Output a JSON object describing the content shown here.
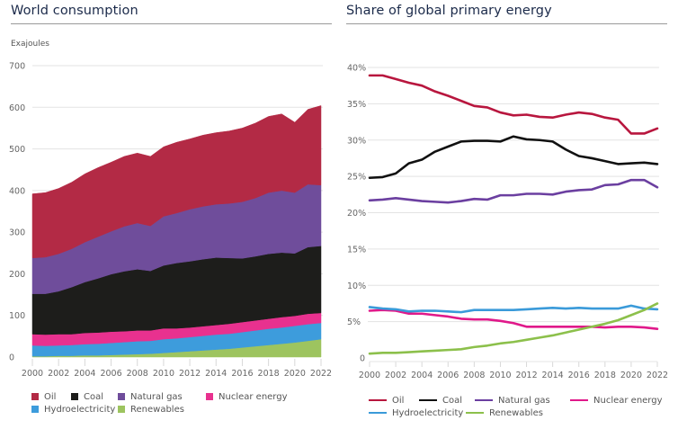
{
  "chart_data": [
    {
      "type": "area",
      "stacked": true,
      "title": "World consumption",
      "ylabel": "Exajoules",
      "xlabel": "",
      "x": [
        2000,
        2001,
        2002,
        2003,
        2004,
        2005,
        2006,
        2007,
        2008,
        2009,
        2010,
        2011,
        2012,
        2013,
        2014,
        2015,
        2016,
        2017,
        2018,
        2019,
        2020,
        2021,
        2022
      ],
      "xticks": [
        "2000",
        "2002",
        "2004",
        "2006",
        "2008",
        "2010",
        "2012",
        "2014",
        "2016",
        "2018",
        "2020",
        "2022"
      ],
      "ylim": [
        0,
        700
      ],
      "yticks": [
        "0",
        "100",
        "200",
        "300",
        "400",
        "500",
        "600",
        "700"
      ],
      "grid": true,
      "legend_position": "bottom",
      "series": [
        {
          "name": "Renewables",
          "color": "#9dc45f",
          "values": [
            2,
            2,
            3,
            3,
            4,
            4,
            5,
            6,
            7,
            8,
            10,
            12,
            14,
            16,
            18,
            20,
            23,
            26,
            29,
            32,
            35,
            39,
            43
          ]
        },
        {
          "name": "Hydroelectricity",
          "color": "#3d9cdc",
          "values": [
            26,
            25,
            25,
            26,
            27,
            28,
            29,
            30,
            31,
            31,
            33,
            33,
            34,
            35,
            36,
            36,
            37,
            38,
            39,
            39,
            40,
            40,
            39
          ]
        },
        {
          "name": "Nuclear energy",
          "color": "#e8318f",
          "values": [
            27,
            27,
            27,
            26,
            27,
            27,
            27,
            26,
            26,
            25,
            26,
            24,
            23,
            23,
            23,
            24,
            24,
            24,
            24,
            25,
            24,
            25,
            24
          ]
        },
        {
          "name": "Coal",
          "color": "#1d1d1b",
          "values": [
            97,
            98,
            103,
            113,
            122,
            130,
            138,
            144,
            147,
            143,
            151,
            157,
            159,
            161,
            162,
            158,
            153,
            154,
            156,
            155,
            150,
            160,
            161
          ]
        },
        {
          "name": "Natural gas",
          "color": "#6f4d9b",
          "values": [
            86,
            88,
            90,
            92,
            96,
            100,
            103,
            108,
            111,
            108,
            118,
            120,
            125,
            127,
            128,
            131,
            136,
            140,
            147,
            149,
            146,
            151,
            146
          ]
        },
        {
          "name": "Oil",
          "color": "#b32a45",
          "values": [
            154,
            155,
            157,
            160,
            164,
            166,
            166,
            168,
            168,
            167,
            167,
            170,
            169,
            171,
            172,
            174,
            177,
            180,
            183,
            184,
            169,
            180,
            191
          ]
        }
      ],
      "legend": [
        "Oil",
        "Coal",
        "Natural gas",
        "Nuclear energy",
        "Hydroelectricity",
        "Renewables"
      ]
    },
    {
      "type": "line",
      "title": "Share of global primary energy",
      "xlabel": "",
      "ylabel": "",
      "x": [
        2000,
        2001,
        2002,
        2003,
        2004,
        2005,
        2006,
        2007,
        2008,
        2009,
        2010,
        2011,
        2012,
        2013,
        2014,
        2015,
        2016,
        2017,
        2018,
        2019,
        2020,
        2021,
        2022
      ],
      "xticks": [
        "2000",
        "2002",
        "2004",
        "2006",
        "2008",
        "2010",
        "2012",
        "2014",
        "2016",
        "2018",
        "2020",
        "2022"
      ],
      "ylim": [
        0,
        40
      ],
      "yticks": [
        "0",
        "5%",
        "10%",
        "15%",
        "20%",
        "25%",
        "30%",
        "35%",
        "40%"
      ],
      "grid": true,
      "legend_position": "bottom",
      "series": [
        {
          "name": "Oil",
          "color": "#b8163e",
          "values": [
            38.9,
            38.9,
            38.4,
            37.9,
            37.5,
            36.7,
            36.1,
            35.4,
            34.7,
            34.5,
            33.8,
            33.4,
            33.5,
            33.2,
            33.1,
            33.5,
            33.8,
            33.6,
            33.1,
            32.8,
            30.9,
            30.9,
            31.6
          ]
        },
        {
          "name": "Coal",
          "color": "#111111",
          "values": [
            24.8,
            24.9,
            25.4,
            26.8,
            27.3,
            28.4,
            29.1,
            29.8,
            29.9,
            29.9,
            29.8,
            30.5,
            30.1,
            30.0,
            29.8,
            28.7,
            27.8,
            27.5,
            27.1,
            26.7,
            26.8,
            26.9,
            26.7
          ]
        },
        {
          "name": "Natural gas",
          "color": "#6b3fa0",
          "values": [
            21.7,
            21.8,
            22.0,
            21.8,
            21.6,
            21.5,
            21.4,
            21.6,
            21.9,
            21.8,
            22.4,
            22.4,
            22.6,
            22.6,
            22.5,
            22.9,
            23.1,
            23.2,
            23.8,
            23.9,
            24.5,
            24.5,
            23.5
          ]
        },
        {
          "name": "Nuclear energy",
          "color": "#e0198a",
          "values": [
            6.5,
            6.6,
            6.5,
            6.1,
            6.1,
            5.9,
            5.7,
            5.4,
            5.3,
            5.3,
            5.1,
            4.8,
            4.3,
            4.3,
            4.3,
            4.3,
            4.3,
            4.3,
            4.2,
            4.3,
            4.3,
            4.2,
            4.0
          ]
        },
        {
          "name": "Hydroelectricity",
          "color": "#3a9ad9",
          "values": [
            7.0,
            6.8,
            6.7,
            6.4,
            6.5,
            6.5,
            6.4,
            6.3,
            6.6,
            6.6,
            6.6,
            6.6,
            6.7,
            6.8,
            6.9,
            6.8,
            6.9,
            6.8,
            6.8,
            6.8,
            7.2,
            6.8,
            6.7
          ]
        },
        {
          "name": "Renewables",
          "color": "#8cc04b",
          "values": [
            0.6,
            0.7,
            0.7,
            0.8,
            0.9,
            1.0,
            1.1,
            1.2,
            1.5,
            1.7,
            2.0,
            2.2,
            2.5,
            2.8,
            3.1,
            3.5,
            3.9,
            4.3,
            4.7,
            5.2,
            5.9,
            6.6,
            7.5
          ]
        }
      ],
      "legend": [
        "Oil",
        "Coal",
        "Natural gas",
        "Nuclear energy",
        "Hydroelectricity",
        "Renewables"
      ]
    }
  ],
  "left": {
    "title": "World consumption",
    "unit": "Exajoules",
    "legend": [
      {
        "label": "Oil",
        "color": "#b32a45"
      },
      {
        "label": "Coal",
        "color": "#1d1d1b"
      },
      {
        "label": "Natural gas",
        "color": "#6f4d9b"
      },
      {
        "label": "Nuclear energy",
        "color": "#e8318f"
      },
      {
        "label": "Hydroelectricity",
        "color": "#3d9cdc"
      },
      {
        "label": "Renewables",
        "color": "#9dc45f"
      }
    ]
  },
  "right": {
    "title": "Share of global primary energy",
    "legend": [
      {
        "label": "Oil",
        "color": "#b8163e"
      },
      {
        "label": "Coal",
        "color": "#111111"
      },
      {
        "label": "Natural gas",
        "color": "#6b3fa0"
      },
      {
        "label": "Nuclear energy",
        "color": "#e0198a"
      },
      {
        "label": "Hydroelectricity",
        "color": "#3a9ad9"
      },
      {
        "label": "Renewables",
        "color": "#8cc04b"
      }
    ]
  },
  "colors": {
    "title": "#1b2a4a",
    "grid": "#e3e3e3",
    "tick_text": "#666666"
  }
}
